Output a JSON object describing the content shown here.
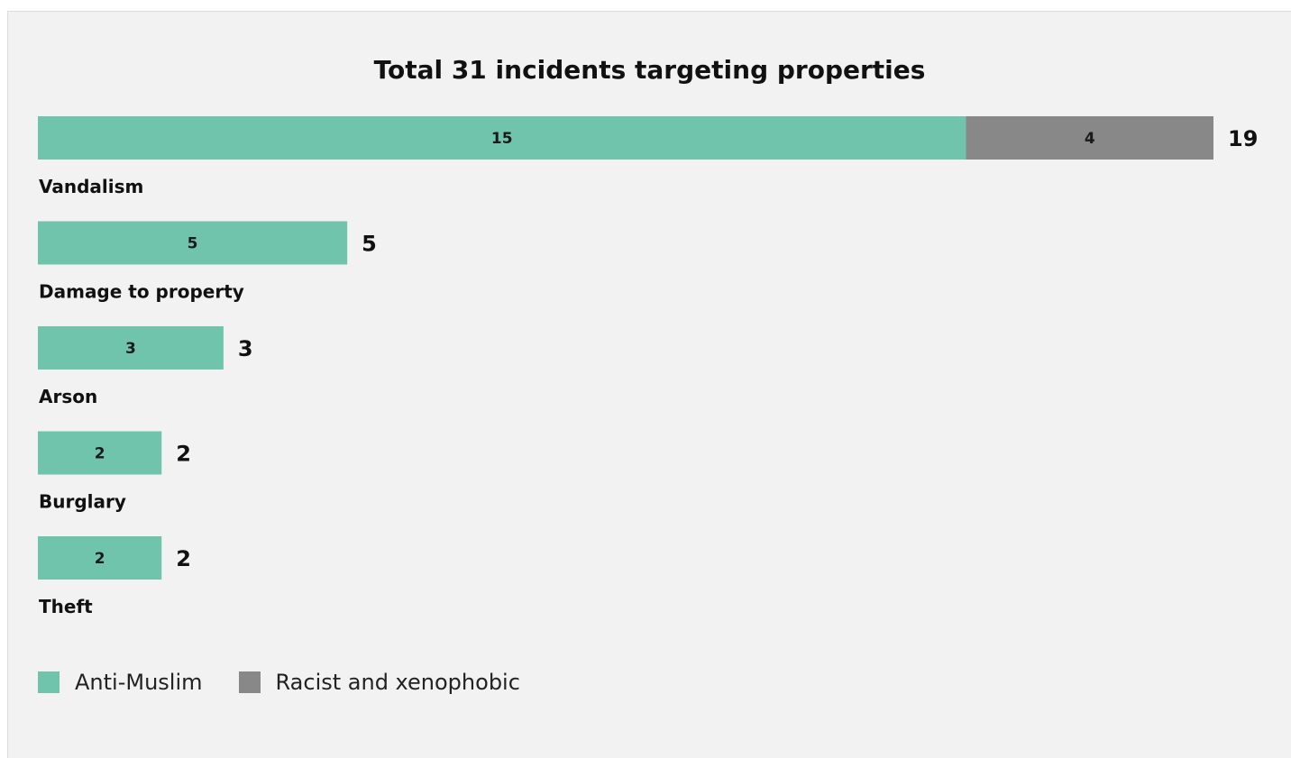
{
  "colors": {
    "anti_muslim": "#70c4ab",
    "racist_xenophobic": "#888888"
  },
  "chart_data": {
    "type": "bar",
    "orientation": "horizontal",
    "stacked": true,
    "title": "Total 31 incidents targeting properties",
    "xlabel": "",
    "ylabel": "",
    "categories": [
      "Vandalism",
      "Damage to property",
      "Arson",
      "Burglary",
      "Theft"
    ],
    "series": [
      {
        "name": "Anti-Muslim",
        "values": [
          15,
          5,
          3,
          2,
          2
        ]
      },
      {
        "name": "Racist and xenophobic",
        "values": [
          4,
          0,
          0,
          0,
          0
        ]
      }
    ],
    "totals": [
      19,
      5,
      3,
      2,
      2
    ],
    "xlim": [
      0,
      19
    ],
    "grid": false,
    "legend_position": "bottom-left"
  }
}
